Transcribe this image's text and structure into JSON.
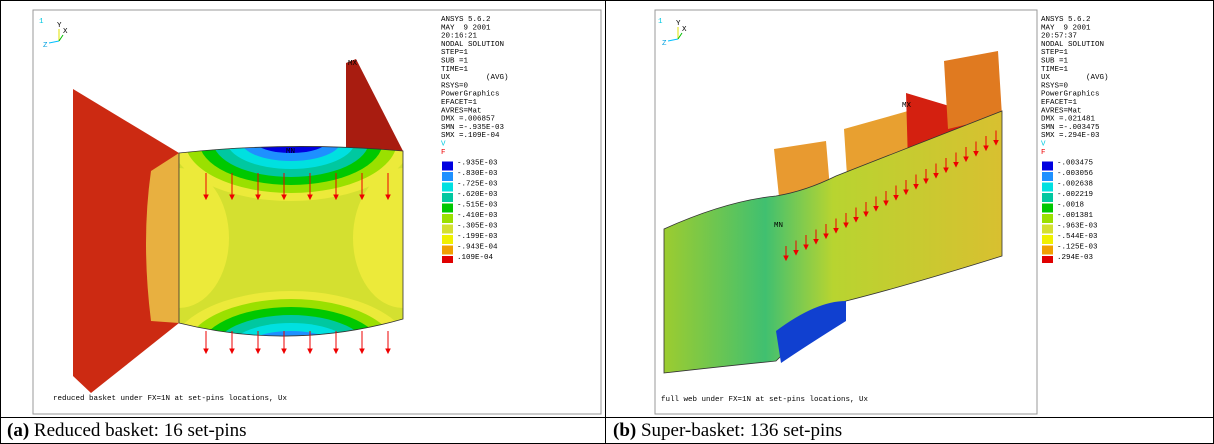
{
  "panels": [
    {
      "plot_number": "1",
      "triad": [
        "Y",
        "Z",
        "X"
      ],
      "info": [
        "ANSYS 5.6.2",
        "MAY  9 2001",
        "20:16:21",
        "NODAL SOLUTION",
        "STEP=1",
        "SUB =1",
        "TIME=1",
        "UX        (AVG)",
        "RSYS=0",
        "PowerGraphics",
        "EFACET=1",
        "AVRES=Mat",
        "DMX =.006857",
        "SMN =-.935E-03",
        "SMX =.109E-04"
      ],
      "symbols": [
        "V",
        "F"
      ],
      "legend": [
        "-.935E-03",
        "-.830E-03",
        "-.725E-03",
        "-.620E-03",
        "-.515E-03",
        "-.410E-03",
        "-.305E-03",
        "-.199E-03",
        "-.943E-04",
        ".109E-04"
      ],
      "max_label": "MX",
      "min_label": "MN",
      "footer": "reduced basket under FX=1N at set-pins locations, Ux",
      "caption_label": "(a)",
      "caption_text": "Reduced basket: 16 set-pins"
    },
    {
      "plot_number": "1",
      "triad": [
        "Y",
        "Z",
        "X"
      ],
      "info": [
        "ANSYS 5.6.2",
        "MAY  9 2001",
        "20:57:37",
        "NODAL SOLUTION",
        "STEP=1",
        "SUB =1",
        "TIME=1",
        "UX        (AVG)",
        "RSYS=0",
        "PowerGraphics",
        "EFACET=1",
        "AVRES=Mat",
        "DMX =.021481",
        "SMN =-.003475",
        "SMX =.294E-03"
      ],
      "symbols": [
        "V",
        "F"
      ],
      "legend": [
        "-.003475",
        "-.003056",
        "-.002638",
        "-.002219",
        "-.0018",
        "-.001381",
        "-.963E-03",
        "-.544E-03",
        "-.125E-03",
        ".294E-03"
      ],
      "max_label": "MX",
      "min_label": "MN",
      "footer": "full web under FX=1N at set-pins locations, Ux",
      "caption_label": "(b)",
      "caption_text": "Super-basket: 136 set-pins"
    }
  ]
}
